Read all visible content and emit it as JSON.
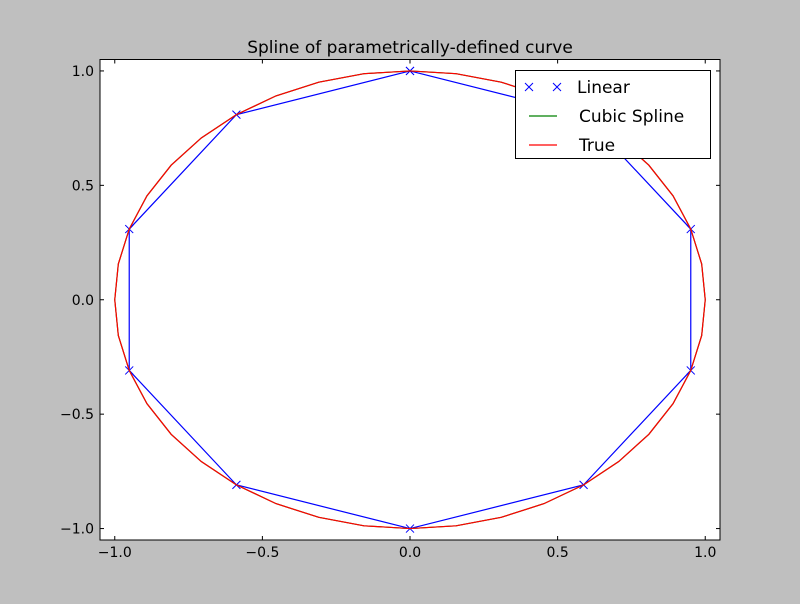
{
  "chart_data": {
    "type": "line",
    "title": "Spline of parametrically-defined curve",
    "xlim": [
      -1.05,
      1.05
    ],
    "ylim": [
      -1.05,
      1.05
    ],
    "xticks": [
      -1.0,
      -0.5,
      0.0,
      0.5,
      1.0
    ],
    "yticks": [
      -1.0,
      -0.5,
      0.0,
      0.5,
      1.0
    ],
    "xtick_labels": [
      "−1.0",
      "−0.5",
      "0.0",
      "0.5",
      "1.0"
    ],
    "ytick_labels": [
      "−1.0",
      "−0.5",
      "0.0",
      "0.5",
      "1.0"
    ],
    "grid": false,
    "legend_position": "top-right",
    "series": [
      {
        "name": "Linear",
        "color": "#0000ff",
        "marker": "x",
        "x": [
          0,
          0.588,
          0.951,
          0.951,
          0.588,
          0,
          -0.588,
          -0.951,
          -0.951,
          -0.588,
          0
        ],
        "y": [
          1,
          0.809,
          0.309,
          -0.309,
          -0.809,
          -1,
          -0.809,
          -0.309,
          0.309,
          0.809,
          1
        ]
      },
      {
        "name": "Cubic Spline",
        "color": "#008000",
        "marker": "",
        "x": [
          0,
          0.156,
          0.309,
          0.454,
          0.588,
          0.707,
          0.809,
          0.891,
          0.951,
          0.988,
          1,
          0.988,
          0.951,
          0.891,
          0.809,
          0.707,
          0.588,
          0.454,
          0.309,
          0.156,
          0,
          -0.156,
          -0.309,
          -0.454,
          -0.588,
          -0.707,
          -0.809,
          -0.891,
          -0.951,
          -0.988,
          -1,
          -0.988,
          -0.951,
          -0.891,
          -0.809,
          -0.707,
          -0.588,
          -0.454,
          -0.309,
          -0.156,
          0
        ],
        "y": [
          1,
          0.988,
          0.951,
          0.891,
          0.809,
          0.707,
          0.588,
          0.454,
          0.309,
          0.156,
          0,
          -0.156,
          -0.309,
          -0.454,
          -0.588,
          -0.707,
          -0.809,
          -0.891,
          -0.951,
          -0.988,
          -1,
          -0.988,
          -0.951,
          -0.891,
          -0.809,
          -0.707,
          -0.588,
          -0.454,
          -0.309,
          -0.156,
          0,
          0.156,
          0.309,
          0.454,
          0.588,
          0.707,
          0.809,
          0.891,
          0.951,
          0.988,
          1
        ]
      },
      {
        "name": "True",
        "color": "#ff0000",
        "marker": "",
        "x": [
          0,
          0.156,
          0.309,
          0.454,
          0.588,
          0.707,
          0.809,
          0.891,
          0.951,
          0.988,
          1,
          0.988,
          0.951,
          0.891,
          0.809,
          0.707,
          0.588,
          0.454,
          0.309,
          0.156,
          0,
          -0.156,
          -0.309,
          -0.454,
          -0.588,
          -0.707,
          -0.809,
          -0.891,
          -0.951,
          -0.988,
          -1,
          -0.988,
          -0.951,
          -0.891,
          -0.809,
          -0.707,
          -0.588,
          -0.454,
          -0.309,
          -0.156,
          0
        ],
        "y": [
          1,
          0.988,
          0.951,
          0.891,
          0.809,
          0.707,
          0.588,
          0.454,
          0.309,
          0.156,
          0,
          -0.156,
          -0.309,
          -0.454,
          -0.588,
          -0.707,
          -0.809,
          -0.891,
          -0.951,
          -0.988,
          -1,
          -0.988,
          -0.951,
          -0.891,
          -0.809,
          -0.707,
          -0.588,
          -0.454,
          -0.309,
          -0.156,
          0,
          0.156,
          0.309,
          0.454,
          0.588,
          0.707,
          0.809,
          0.891,
          0.951,
          0.988,
          1
        ]
      }
    ]
  }
}
